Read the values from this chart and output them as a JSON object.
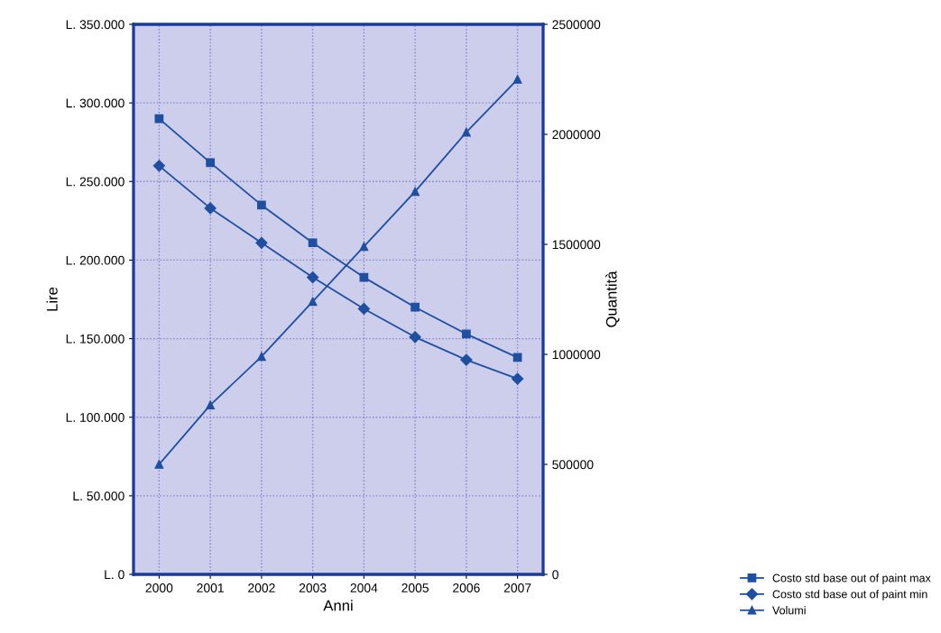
{
  "chart_data": {
    "type": "line",
    "xlabel": "Anni",
    "ylabel": "Lire",
    "y2label": "Quantità",
    "categories": [
      "2000",
      "2001",
      "2002",
      "2003",
      "2004",
      "2005",
      "2006",
      "2007"
    ],
    "series": [
      {
        "name": "Costo std base out of paint max",
        "color": "#1f4fa0",
        "marker": "square",
        "values": [
          290000,
          262000,
          235000,
          211000,
          189000,
          170000,
          153000,
          138000
        ]
      },
      {
        "name": "Costo std base out of paint min",
        "color": "#1f4fa0",
        "marker": "diamond",
        "values": [
          260000,
          233000,
          211000,
          189000,
          169000,
          151000,
          136500,
          124500
        ]
      },
      {
        "name": "Volumi",
        "color": "#1f4fa0",
        "marker": "triangle",
        "axis": "y2",
        "values": [
          500000,
          770000,
          990000,
          1240000,
          1490000,
          1740000,
          2010000,
          2250000
        ]
      }
    ],
    "ylim": [
      0,
      350000
    ],
    "yticks": [
      {
        "value": 0,
        "label": "L. 0"
      },
      {
        "value": 50000,
        "label": "L. 50.000"
      },
      {
        "value": 100000,
        "label": "L. 100.000"
      },
      {
        "value": 150000,
        "label": "L. 150.000"
      },
      {
        "value": 200000,
        "label": "L. 200.000"
      },
      {
        "value": 250000,
        "label": "L. 250.000"
      },
      {
        "value": 300000,
        "label": "L. 300.000"
      },
      {
        "value": 350000,
        "label": "L. 350.000"
      }
    ],
    "y2lim": [
      0,
      2500000
    ],
    "y2ticks": [
      0,
      500000,
      1000000,
      1500000,
      2000000,
      2500000
    ],
    "grid": true,
    "legend": "bottom right",
    "line_style": "solid"
  }
}
